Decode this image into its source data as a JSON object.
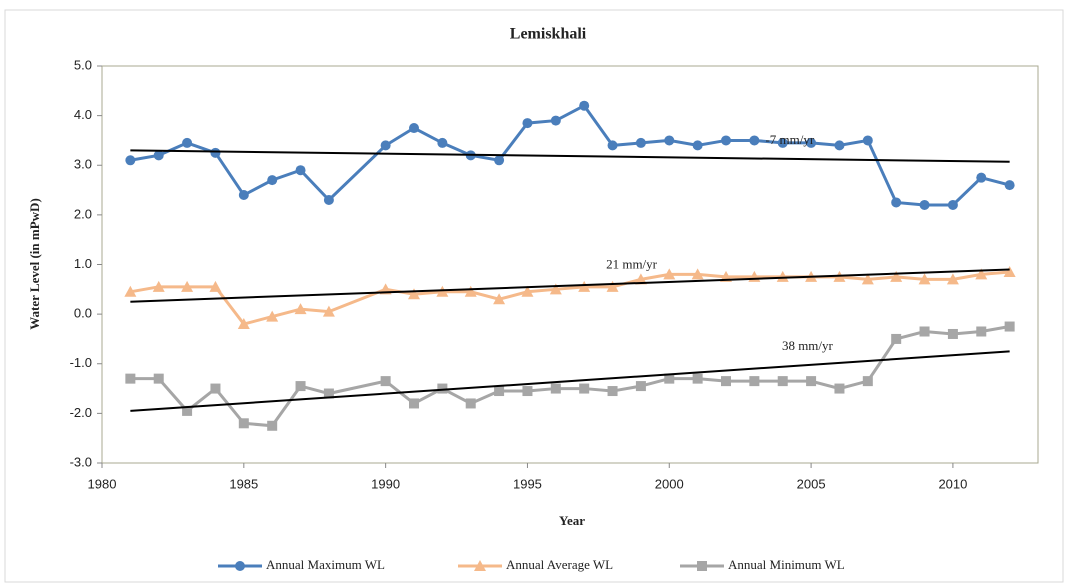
{
  "chart_data": {
    "type": "line",
    "title": "Lemiskhali",
    "x_label": "Year",
    "y_label": "Water Level (in mPwD)",
    "x": [
      1981,
      1982,
      1983,
      1984,
      1985,
      1986,
      1987,
      1988,
      1990,
      1991,
      1992,
      1993,
      1994,
      1995,
      1996,
      1997,
      1998,
      1999,
      2000,
      2001,
      2002,
      2003,
      2004,
      2005,
      2006,
      2007,
      2008,
      2009,
      2010,
      2011,
      2012
    ],
    "series": [
      {
        "name": "Annual Maximum WL",
        "color": "#4a7ebb",
        "marker": "circle",
        "values": [
          3.1,
          3.2,
          3.45,
          3.25,
          2.4,
          2.7,
          2.9,
          2.3,
          3.4,
          3.75,
          3.45,
          3.2,
          3.1,
          3.85,
          3.9,
          4.2,
          3.4,
          3.45,
          3.5,
          3.4,
          3.5,
          3.5,
          3.45,
          3.45,
          3.4,
          3.5,
          2.25,
          2.2,
          2.2,
          2.75,
          2.6
        ]
      },
      {
        "name": "Annual Average WL",
        "color": "#f5b98a",
        "marker": "triangle",
        "values": [
          0.45,
          0.55,
          0.55,
          0.55,
          -0.2,
          -0.05,
          0.1,
          0.05,
          0.5,
          0.4,
          0.45,
          0.45,
          0.3,
          0.45,
          0.5,
          0.55,
          0.55,
          0.7,
          0.8,
          0.8,
          0.75,
          0.75,
          0.75,
          0.75,
          0.75,
          0.7,
          0.75,
          0.7,
          0.7,
          0.8,
          0.85
        ]
      },
      {
        "name": "Annual Minimum  WL",
        "color": "#a6a6a6",
        "marker": "square",
        "values": [
          -1.3,
          -1.3,
          -1.95,
          -1.5,
          -2.2,
          -2.25,
          -1.45,
          -1.6,
          -1.35,
          -1.8,
          -1.5,
          -1.8,
          -1.55,
          -1.55,
          -1.5,
          -1.5,
          -1.55,
          -1.45,
          -1.3,
          -1.3,
          -1.35,
          -1.35,
          -1.35,
          -1.35,
          -1.5,
          -1.35,
          -0.5,
          -0.35,
          -0.4,
          -0.35,
          -0.25
        ]
      }
    ],
    "trendlines": [
      {
        "label": "-7 mm/yr",
        "color": "#000000",
        "x": [
          1981,
          2012
        ],
        "values": [
          3.3,
          3.07
        ]
      },
      {
        "label": "21 mm/yr",
        "color": "#000000",
        "x": [
          1981,
          2012
        ],
        "values": [
          0.25,
          0.9
        ]
      },
      {
        "label": "38 mm/yr",
        "color": "#000000",
        "x": [
          1981,
          2012
        ],
        "values": [
          -1.95,
          -0.75
        ]
      }
    ],
    "xlim": [
      1980,
      2013
    ],
    "xticks": [
      1980,
      1985,
      1990,
      1995,
      2000,
      2005,
      2010
    ],
    "ylim": [
      -3,
      5
    ],
    "yticks": [
      {
        "value": -3,
        "label": "-3.0"
      },
      {
        "value": -2,
        "label": "-2.0"
      },
      {
        "value": -1,
        "label": "-1.0"
      },
      {
        "value": 0,
        "label": "0.0"
      },
      {
        "value": 1,
        "label": "1.0"
      },
      {
        "value": 2,
        "label": "2.0"
      },
      {
        "value": 3,
        "label": "3.0"
      },
      {
        "value": 4,
        "label": "4.0"
      },
      {
        "value": 5,
        "label": "5.0"
      }
    ],
    "legend": "bottom"
  }
}
